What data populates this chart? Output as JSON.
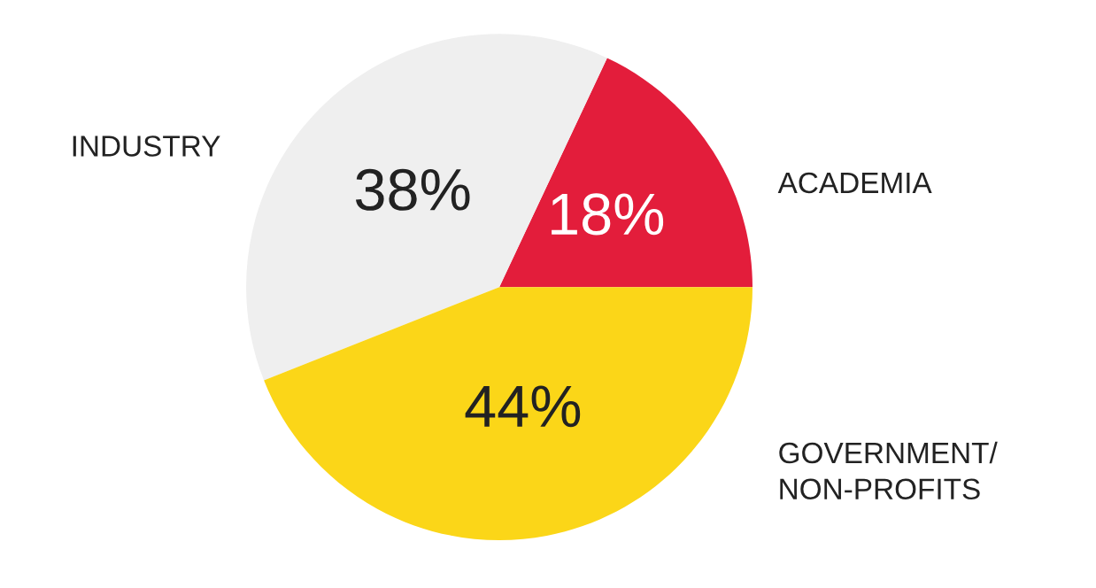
{
  "chart_data": {
    "type": "pie",
    "categories": [
      "ACADEMIA",
      "INDUSTRY",
      "GOVERNMENT/\nNON-PROFITS"
    ],
    "values": [
      18,
      38,
      44
    ],
    "colors": [
      "#e31d3b",
      "#efefef",
      "#fbd618"
    ],
    "value_labels": [
      "18%",
      "38%",
      "44%"
    ],
    "legend": false
  }
}
